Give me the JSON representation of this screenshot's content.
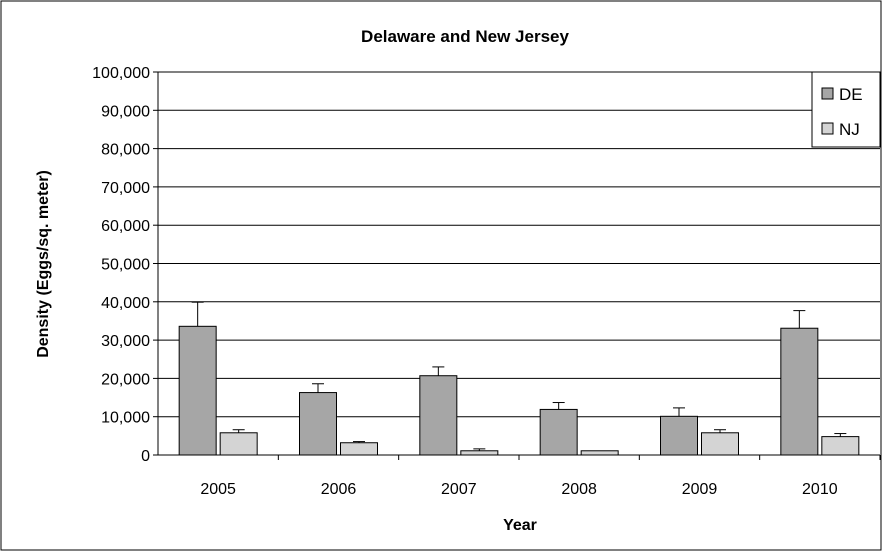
{
  "chart_data": {
    "type": "bar",
    "title": "Delaware and New Jersey",
    "xlabel": "Year",
    "ylabel": "Density (Eggs/sq. meter)",
    "categories": [
      "2005",
      "2006",
      "2007",
      "2008",
      "2009",
      "2010"
    ],
    "ylim": [
      0,
      100000
    ],
    "yticks": [
      0,
      10000,
      20000,
      30000,
      40000,
      50000,
      60000,
      70000,
      80000,
      90000,
      100000
    ],
    "ytick_labels": [
      "0",
      "10,000",
      "20,000",
      "30,000",
      "40,000",
      "50,000",
      "60,000",
      "70,000",
      "80,000",
      "90,000",
      "100,000"
    ],
    "grid": "horizontal",
    "legend_position": "top-right",
    "series": [
      {
        "name": "DE",
        "color": "#a6a6a6",
        "values": [
          33600,
          16300,
          20700,
          11900,
          10100,
          33100
        ],
        "error": [
          6300,
          2300,
          2300,
          1800,
          2200,
          4600
        ]
      },
      {
        "name": "NJ",
        "color": "#d4d4d4",
        "values": [
          5800,
          3200,
          1100,
          1100,
          5800,
          4800
        ],
        "error": [
          800,
          300,
          500,
          0,
          800,
          800
        ]
      }
    ]
  }
}
